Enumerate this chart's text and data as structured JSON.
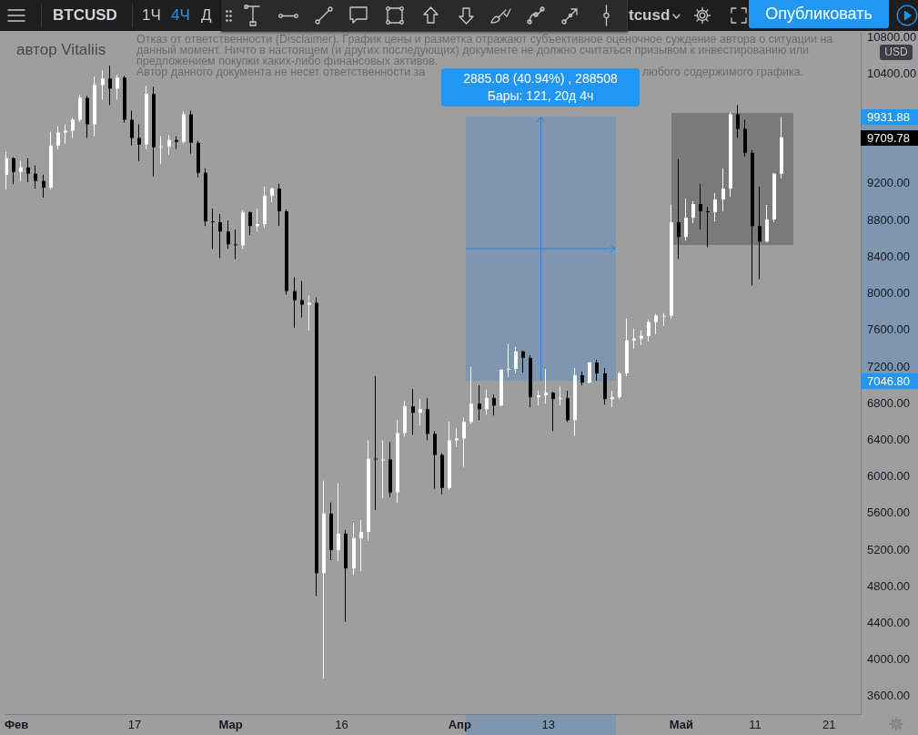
{
  "chart_data": {
    "type": "candlestick",
    "title": "BTCUSD",
    "x": [
      "--01-30T12:00",
      "--01-31T12:00",
      "--02-01T12:00",
      "--02-02T12:00",
      "--02-03T12:00",
      "--02-04T12:00",
      "--02-05T12:00",
      "--02-06T12:00",
      "--02-07T12:00",
      "--02-08T12:00",
      "--02-09T12:00",
      "--02-10T12:00",
      "--02-11T12:00",
      "--02-12T12:00",
      "--02-13T12:00",
      "--02-14T12:00",
      "--02-15T12:00",
      "--02-16T12:00",
      "--02-17T12:00",
      "--02-18T12:00",
      "--02-19T12:00",
      "--02-20T12:00",
      "--02-21T12:00",
      "--02-22T12:00",
      "--02-23T12:00",
      "--02-24T12:00",
      "--02-25T12:00",
      "--02-26T12:00",
      "--02-27T12:00",
      "--02-28T12:00",
      "--02-29T12:00",
      "--03-01T12:00",
      "--03-02T12:00",
      "--03-03T12:00",
      "--03-04T12:00",
      "--03-05T12:00",
      "--03-06T12:00",
      "--03-07T12:00",
      "--03-08T12:00",
      "--03-09T12:00",
      "--03-10T12:00",
      "--03-11T12:00",
      "--03-12T12:00",
      "--03-13T12:00",
      "--03-14T12:00",
      "--03-15T12:00",
      "--03-16T12:00",
      "--03-17T12:00",
      "--03-18T12:00",
      "--03-19T12:00",
      "--03-20T12:00",
      "--03-21T12:00",
      "--03-22T12:00",
      "--03-23T12:00",
      "--03-24T12:00",
      "--03-25T12:00",
      "--03-26T12:00",
      "--03-27T12:00",
      "--03-28T12:00",
      "--03-29T12:00",
      "--03-30T12:00",
      "--03-31T12:00",
      "--04-01T12:00",
      "--04-02T12:00",
      "--04-03T12:00",
      "--04-04T12:00",
      "--04-05T12:00",
      "--04-06T12:00",
      "--04-07T12:00",
      "--04-08T12:00",
      "--04-09T12:00",
      "--04-10T12:00",
      "--04-11T12:00",
      "--04-12T12:00",
      "--04-13T12:00",
      "--04-14T12:00",
      "--04-15T12:00",
      "--04-16T12:00",
      "--04-17T12:00",
      "--04-18T12:00",
      "--04-19T12:00",
      "--04-20T12:00",
      "--04-21T12:00",
      "--04-22T12:00",
      "--04-23T12:00",
      "--04-24T12:00",
      "--04-25T12:00",
      "--04-26T12:00",
      "--04-27T12:00",
      "--04-28T12:00",
      "--04-29T12:00",
      "--04-30T12:00",
      "--05-01T12:00",
      "--05-02T12:00",
      "--05-03T12:00",
      "--05-04T12:00",
      "--05-05T12:00",
      "--05-06T12:00",
      "--05-07T12:00",
      "--05-08T12:00",
      "--05-09T12:00",
      "--05-10T12:00",
      "--05-11T12:00",
      "--05-12T12:00",
      "--05-13T12:00",
      "--05-14T12:00"
    ],
    "ohlc": [
      [
        9300,
        9550,
        9140,
        9480
      ],
      [
        9480,
        9490,
        9200,
        9330
      ],
      [
        9330,
        9450,
        9230,
        9380
      ],
      [
        9380,
        9480,
        9220,
        9310
      ],
      [
        9310,
        9400,
        9150,
        9230
      ],
      [
        9230,
        9300,
        9050,
        9160
      ],
      [
        9160,
        9770,
        9140,
        9620
      ],
      [
        9620,
        9830,
        9580,
        9760
      ],
      [
        9760,
        9850,
        9640,
        9780
      ],
      [
        9780,
        9920,
        9700,
        9900
      ],
      [
        9900,
        10170,
        9880,
        10140
      ],
      [
        10140,
        10160,
        9700,
        9850
      ],
      [
        9850,
        10370,
        9720,
        10280
      ],
      [
        10280,
        10440,
        10120,
        10350
      ],
      [
        10350,
        10490,
        10060,
        10240
      ],
      [
        10240,
        10390,
        10120,
        10360
      ],
      [
        10360,
        10380,
        9870,
        9900
      ],
      [
        9900,
        10000,
        9620,
        9700
      ],
      [
        9700,
        9850,
        9450,
        9630
      ],
      [
        9630,
        10270,
        9580,
        10180
      ],
      [
        10180,
        10260,
        9280,
        9600
      ],
      [
        9600,
        9720,
        9420,
        9610
      ],
      [
        9610,
        9730,
        9520,
        9680
      ],
      [
        9680,
        9720,
        9580,
        9660
      ],
      [
        9660,
        9990,
        9640,
        9960
      ],
      [
        9960,
        10000,
        9530,
        9650
      ],
      [
        9650,
        9670,
        9270,
        9320
      ],
      [
        9320,
        9370,
        8740,
        8790
      ],
      [
        8790,
        8930,
        8490,
        8780
      ],
      [
        8780,
        8870,
        8390,
        8680
      ],
      [
        8680,
        8800,
        8490,
        8540
      ],
      [
        8540,
        8700,
        8380,
        8530
      ],
      [
        8530,
        8910,
        8490,
        8890
      ],
      [
        8890,
        8900,
        8640,
        8740
      ],
      [
        8740,
        8930,
        8680,
        8760
      ],
      [
        8760,
        9170,
        8720,
        9070
      ],
      [
        9070,
        9160,
        9000,
        9150
      ],
      [
        9150,
        9200,
        8740,
        8900
      ],
      [
        8900,
        8920,
        7990,
        8030
      ],
      [
        8030,
        8180,
        7630,
        7930
      ],
      [
        7930,
        8140,
        7740,
        7880
      ],
      [
        7880,
        7980,
        7600,
        7900
      ],
      [
        7900,
        7960,
        4700,
        4950
      ],
      [
        4950,
        5960,
        3800,
        5600
      ],
      [
        5600,
        5720,
        5090,
        5200
      ],
      [
        5200,
        5930,
        5080,
        5380
      ],
      [
        5380,
        5420,
        4420,
        5000
      ],
      [
        5000,
        5500,
        4930,
        5330
      ],
      [
        5330,
        5530,
        4970,
        5400
      ],
      [
        5400,
        6400,
        5300,
        6200
      ],
      [
        6200,
        7100,
        5640,
        6190
      ],
      [
        6190,
        6400,
        5770,
        6190
      ],
      [
        6190,
        6380,
        5780,
        5830
      ],
      [
        5830,
        6620,
        5720,
        6480
      ],
      [
        6480,
        6830,
        6440,
        6770
      ],
      [
        6770,
        6960,
        6460,
        6700
      ],
      [
        6700,
        6850,
        6560,
        6740
      ],
      [
        6740,
        6860,
        6400,
        6470
      ],
      [
        6470,
        6500,
        5870,
        6240
      ],
      [
        6240,
        6260,
        5810,
        5880
      ],
      [
        5880,
        6600,
        5860,
        6400
      ],
      [
        6400,
        6530,
        6330,
        6420
      ],
      [
        6420,
        6650,
        6110,
        6600
      ],
      [
        6600,
        7200,
        6580,
        6800
      ],
      [
        6800,
        7000,
        6620,
        6740
      ],
      [
        6740,
        6950,
        6680,
        6860
      ],
      [
        6860,
        6900,
        6670,
        6780
      ],
      [
        6780,
        7180,
        6770,
        7170
      ],
      [
        7170,
        7450,
        7090,
        7180
      ],
      [
        7180,
        7420,
        7130,
        7370
      ],
      [
        7370,
        7380,
        7140,
        7300
      ],
      [
        7300,
        7330,
        6760,
        6870
      ],
      [
        6870,
        6940,
        6780,
        6890
      ],
      [
        6890,
        7180,
        6800,
        6920
      ],
      [
        6920,
        6930,
        6500,
        6850
      ],
      [
        6850,
        6990,
        6780,
        6860
      ],
      [
        6860,
        6940,
        6600,
        6620
      ],
      [
        6620,
        7190,
        6450,
        7110
      ],
      [
        7110,
        7150,
        7000,
        7030
      ],
      [
        7030,
        7250,
        7020,
        7250
      ],
      [
        7250,
        7280,
        7050,
        7130
      ],
      [
        7130,
        7190,
        6790,
        6850
      ],
      [
        6850,
        6940,
        6760,
        6870
      ],
      [
        6870,
        7150,
        6850,
        7130
      ],
      [
        7130,
        7730,
        7100,
        7490
      ],
      [
        7490,
        7620,
        7400,
        7510
      ],
      [
        7510,
        7600,
        7440,
        7540
      ],
      [
        7540,
        7720,
        7480,
        7690
      ],
      [
        7690,
        7780,
        7560,
        7760
      ],
      [
        7760,
        7790,
        7650,
        7760
      ],
      [
        7760,
        8970,
        7730,
        8780
      ],
      [
        8780,
        9470,
        8380,
        8620
      ],
      [
        8620,
        9040,
        8580,
        8830
      ],
      [
        8830,
        9010,
        8770,
        8980
      ],
      [
        8980,
        9200,
        8700,
        8900
      ],
      [
        8900,
        8950,
        8510,
        8890
      ],
      [
        8890,
        9100,
        8790,
        9030
      ],
      [
        9030,
        9370,
        8900,
        9150
      ],
      [
        9150,
        9980,
        9060,
        9960
      ],
      [
        9960,
        10060,
        9700,
        9800
      ],
      [
        9800,
        9900,
        9500,
        9540
      ],
      [
        9540,
        9570,
        8090,
        8740
      ],
      [
        8740,
        9170,
        8160,
        8570
      ],
      [
        8570,
        8970,
        8560,
        8810
      ],
      [
        8810,
        9320,
        8780,
        9310
      ],
      [
        9310,
        9930,
        9260,
        9709.78
      ]
    ],
    "colors": [
      "#ffffff",
      "#000000",
      "#ffffff",
      "#000000",
      "#000000",
      "#000000",
      "#ffffff",
      "#ffffff",
      "#ffffff",
      "#ffffff",
      "#ffffff",
      "#000000",
      "#ffffff",
      "#ffffff",
      "#000000",
      "#ffffff",
      "#000000",
      "#000000",
      "#000000",
      "#ffffff",
      "#000000",
      "#ffffff",
      "#ffffff",
      "#000000",
      "#ffffff",
      "#000000",
      "#000000",
      "#000000",
      "#000000",
      "#000000",
      "#000000",
      "#000000",
      "#ffffff",
      "#000000",
      "#ffffff",
      "#ffffff",
      "#ffffff",
      "#000000",
      "#000000",
      "#000000",
      "#000000",
      "#ffffff",
      "#000000",
      "#ffffff",
      "#000000",
      "#ffffff",
      "#000000",
      "#ffffff",
      "#ffffff",
      "#ffffff",
      "#000000",
      "#ffffff",
      "#000000",
      "#ffffff",
      "#ffffff",
      "#000000",
      "#ffffff",
      "#000000",
      "#000000",
      "#000000",
      "#ffffff",
      "#ffffff",
      "#ffffff",
      "#ffffff",
      "#000000",
      "#ffffff",
      "#000000",
      "#ffffff",
      "#ffffff",
      "#ffffff",
      "#000000",
      "#000000",
      "#ffffff",
      "#ffffff",
      "#000000",
      "#ffffff",
      "#000000",
      "#ffffff",
      "#000000",
      "#ffffff",
      "#000000",
      "#000000",
      "#ffffff",
      "#ffffff",
      "#ffffff",
      "#ffffff",
      "#ffffff",
      "#ffffff",
      "#ffffff",
      "#ffffff",
      "#ffffff",
      "#000000",
      "#ffffff",
      "#ffffff",
      "#000000",
      "#000000",
      "#ffffff",
      "#ffffff",
      "#ffffff",
      "#000000",
      "#000000",
      "#000000",
      "#000000",
      "#ffffff",
      "#ffffff",
      "#ffffff"
    ],
    "xlim": [
      "--01-30T11:00",
      "--05-25T06:45"
    ],
    "xticks": [
      {
        "value": "--02-01",
        "label": "Фев"
      },
      {
        "value": "--02-17",
        "label": "17"
      },
      {
        "value": "--03-01",
        "label": "Мар"
      },
      {
        "value": "--03-16",
        "label": "16"
      },
      {
        "value": "--04-01",
        "label": "Апр"
      },
      {
        "value": "--04-13",
        "label": "13"
      },
      {
        "value": "--05-01",
        "label": "Май"
      },
      {
        "value": "--05-11",
        "label": "11"
      },
      {
        "value": "--05-21",
        "label": "21"
      }
    ],
    "ylim": [
      3410,
      10850
    ],
    "yticks": [
      {
        "value": 3600,
        "label": "3600.00"
      },
      {
        "value": 4000,
        "label": "4000.00"
      },
      {
        "value": 4400,
        "label": "4400.00"
      },
      {
        "value": 4800,
        "label": "4800.00"
      },
      {
        "value": 5200,
        "label": "5200.00"
      },
      {
        "value": 5600,
        "label": "5600.00"
      },
      {
        "value": 6000,
        "label": "6000.00"
      },
      {
        "value": 6400,
        "label": "6400.00"
      },
      {
        "value": 6800,
        "label": "6800.00"
      },
      {
        "value": 7200,
        "label": "7200.00"
      },
      {
        "value": 7600,
        "label": "7600.00"
      },
      {
        "value": 8000,
        "label": "8000.00"
      },
      {
        "value": 8400,
        "label": "8400.00"
      },
      {
        "value": 8800,
        "label": "8800.00"
      },
      {
        "value": 9200,
        "label": "9200.00"
      },
      {
        "value": 10400,
        "label": "10400.00"
      },
      {
        "value": 10800,
        "label": "10800.00"
      }
    ],
    "annotations": [
      "автор Vitaliis",
      "Отказ от ответственности (Disclaimer). График цены и разметка отражают субъективное оценочное суждение автора о ситуации на данный момент. Ничто в настоящем (и других последующих) документе не должно считаться призывом к инвестированию или предложением покупки каких-либо финансовых активов.",
      "Автор данного документа не несет ответственности за",
      "любого содержимого графика.",
      "2885.08 (40.94%) , 288508\nБары: 121, 20д 4ч",
      "9931.88",
      "9709.78",
      "7046.80",
      "1Ч",
      "4Ч",
      "Д",
      "tcusd",
      "Опубликовать",
      "USD"
    ]
  }
}
